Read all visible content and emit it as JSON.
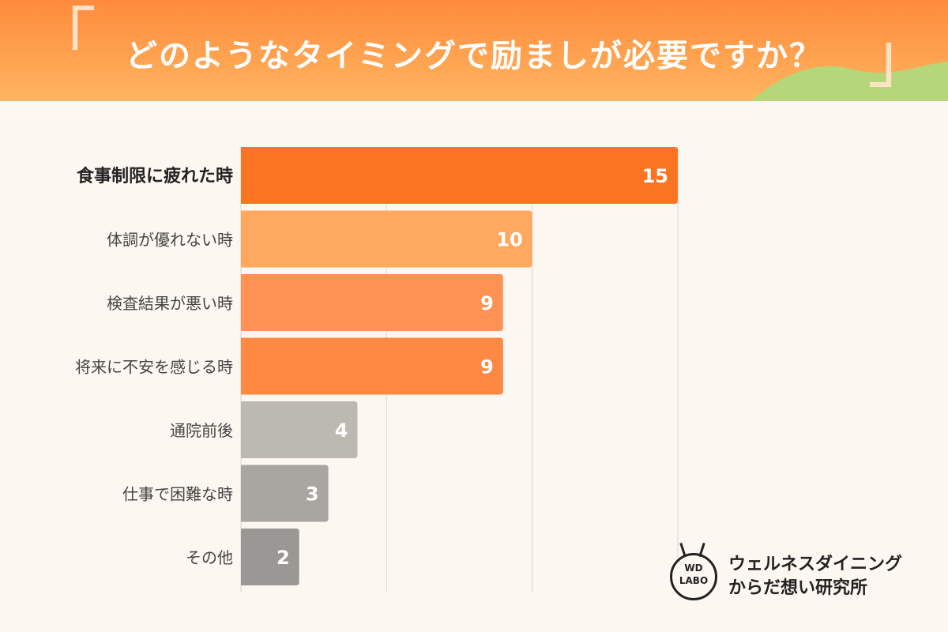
{
  "header": {
    "title": "どのようなタイミングで励ましが必要ですか？",
    "bracket_open": "「",
    "bracket_close": "」"
  },
  "chart_data": {
    "type": "bar",
    "orientation": "horizontal",
    "categories": [
      "食事制限に疲れた時",
      "体調が優れない時",
      "検査結果が悪い時",
      "将来に不安を感じる時",
      "通院前後",
      "仕事で困難な時",
      "その他"
    ],
    "values": [
      15,
      10,
      9,
      9,
      4,
      3,
      2
    ],
    "bar_colors": [
      "#fa7422",
      "#ffa85f",
      "#ff9252",
      "#ff8843",
      "#bcb8b2",
      "#a9a6a2",
      "#9a9894"
    ],
    "highlight_index": 0,
    "xlim": [
      0,
      15
    ],
    "grid": true,
    "gridline_values": [
      5,
      10,
      15
    ],
    "title": "",
    "xlabel": "",
    "ylabel": ""
  },
  "logo": {
    "mark_text": "WD\nLABO",
    "text": "ウェルネスダイニング\nからだ想い研究所"
  },
  "colors": {
    "header_top": "#ff8a3d",
    "header_bottom": "#ffb55f",
    "hill": "#b5d77a",
    "background": "#fdf7f1",
    "gridline": "#dcd6d0"
  }
}
